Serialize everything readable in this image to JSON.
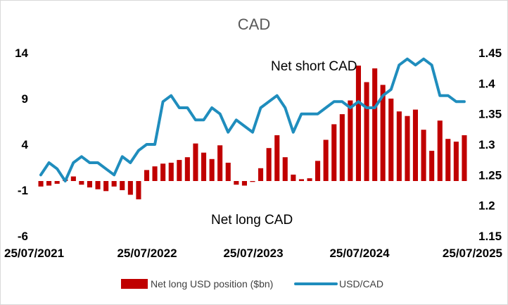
{
  "chart_data": {
    "type": "bar+line",
    "title": "CAD",
    "annotations": [
      "Net short CAD",
      "Net long CAD"
    ],
    "x_tick_labels": [
      "25/07/2021",
      "25/07/2022",
      "25/07/2023",
      "25/07/2024",
      "25/07/2025"
    ],
    "y_left": {
      "ticks": [
        "14",
        "9",
        "4",
        "-1",
        "-6"
      ],
      "range": [
        -6,
        14
      ]
    },
    "y_right": {
      "ticks": [
        "1.45",
        "1.4",
        "1.35",
        "1.3",
        "1.25",
        "1.2",
        "1.15"
      ],
      "range": [
        1.15,
        1.45
      ]
    },
    "x_start": "2021-07-25",
    "x_end": "2025-07-25",
    "series": [
      {
        "name": "Net long USD position ($bn)",
        "type": "bar",
        "axis": "left",
        "color": "#c00000",
        "x": [
          "2021-07-25",
          "2021-08-22",
          "2021-09-19",
          "2021-10-17",
          "2021-11-14",
          "2021-12-12",
          "2022-01-09",
          "2022-02-06",
          "2022-03-06",
          "2022-04-03",
          "2022-05-01",
          "2022-05-29",
          "2022-06-26",
          "2022-07-24",
          "2022-08-21",
          "2022-09-18",
          "2022-10-16",
          "2022-11-13",
          "2022-12-11",
          "2023-01-08",
          "2023-02-05",
          "2023-03-05",
          "2023-04-02",
          "2023-04-30",
          "2023-05-28",
          "2023-06-25",
          "2023-07-23",
          "2023-08-20",
          "2023-09-17",
          "2023-10-15",
          "2023-11-12",
          "2023-12-10",
          "2024-01-07",
          "2024-02-04",
          "2024-03-03",
          "2024-03-31",
          "2024-04-28",
          "2024-05-26",
          "2024-06-23",
          "2024-07-21",
          "2024-08-18",
          "2024-09-15",
          "2024-10-13",
          "2024-11-10",
          "2024-12-08",
          "2025-01-05",
          "2025-02-02",
          "2025-03-02",
          "2025-03-30",
          "2025-04-27",
          "2025-05-25",
          "2025-06-22",
          "2025-07-20"
        ],
        "values": [
          -0.6,
          -0.5,
          -0.3,
          0.2,
          0.5,
          -0.4,
          -0.7,
          -0.9,
          -1.1,
          -0.6,
          -1.0,
          -1.5,
          -2.0,
          1.2,
          1.6,
          1.9,
          2.0,
          2.3,
          2.6,
          4.1,
          3.1,
          2.4,
          3.9,
          2.0,
          -0.4,
          -0.5,
          -0.1,
          1.4,
          3.6,
          5.0,
          2.6,
          0.7,
          0.2,
          0.3,
          2.2,
          4.5,
          6.2,
          7.3,
          8.8,
          12.6,
          10.8,
          12.3,
          10.5,
          9.0,
          7.6,
          7.1,
          7.8,
          5.6,
          3.3,
          6.6,
          4.6,
          4.3,
          5.0
        ]
      },
      {
        "name": "USD/CAD",
        "type": "line",
        "axis": "right",
        "color": "#1f8dbd",
        "x": [
          "2021-07-25",
          "2021-08-22",
          "2021-09-19",
          "2021-10-17",
          "2021-11-14",
          "2021-12-12",
          "2022-01-09",
          "2022-02-06",
          "2022-03-06",
          "2022-04-03",
          "2022-05-01",
          "2022-05-29",
          "2022-06-26",
          "2022-07-24",
          "2022-08-21",
          "2022-09-18",
          "2022-10-16",
          "2022-11-13",
          "2022-12-11",
          "2023-01-08",
          "2023-02-05",
          "2023-03-05",
          "2023-04-02",
          "2023-04-30",
          "2023-05-28",
          "2023-06-25",
          "2023-07-23",
          "2023-08-20",
          "2023-09-17",
          "2023-10-15",
          "2023-11-12",
          "2023-12-10",
          "2024-01-07",
          "2024-02-04",
          "2024-03-03",
          "2024-03-31",
          "2024-04-28",
          "2024-05-26",
          "2024-06-23",
          "2024-07-21",
          "2024-08-18",
          "2024-09-15",
          "2024-10-13",
          "2024-11-10",
          "2024-12-08",
          "2025-01-05",
          "2025-02-02",
          "2025-03-02",
          "2025-03-30",
          "2025-04-27",
          "2025-05-25",
          "2025-06-22",
          "2025-07-20"
        ],
        "values": [
          1.25,
          1.27,
          1.26,
          1.24,
          1.27,
          1.28,
          1.27,
          1.27,
          1.26,
          1.25,
          1.28,
          1.27,
          1.29,
          1.3,
          1.3,
          1.37,
          1.38,
          1.36,
          1.36,
          1.34,
          1.34,
          1.36,
          1.35,
          1.32,
          1.34,
          1.33,
          1.32,
          1.36,
          1.37,
          1.38,
          1.36,
          1.32,
          1.35,
          1.35,
          1.35,
          1.36,
          1.37,
          1.37,
          1.36,
          1.37,
          1.36,
          1.36,
          1.38,
          1.39,
          1.43,
          1.44,
          1.43,
          1.44,
          1.43,
          1.38,
          1.38,
          1.37,
          1.37
        ]
      }
    ],
    "legend": {
      "position": "bottom"
    },
    "grid": false
  }
}
